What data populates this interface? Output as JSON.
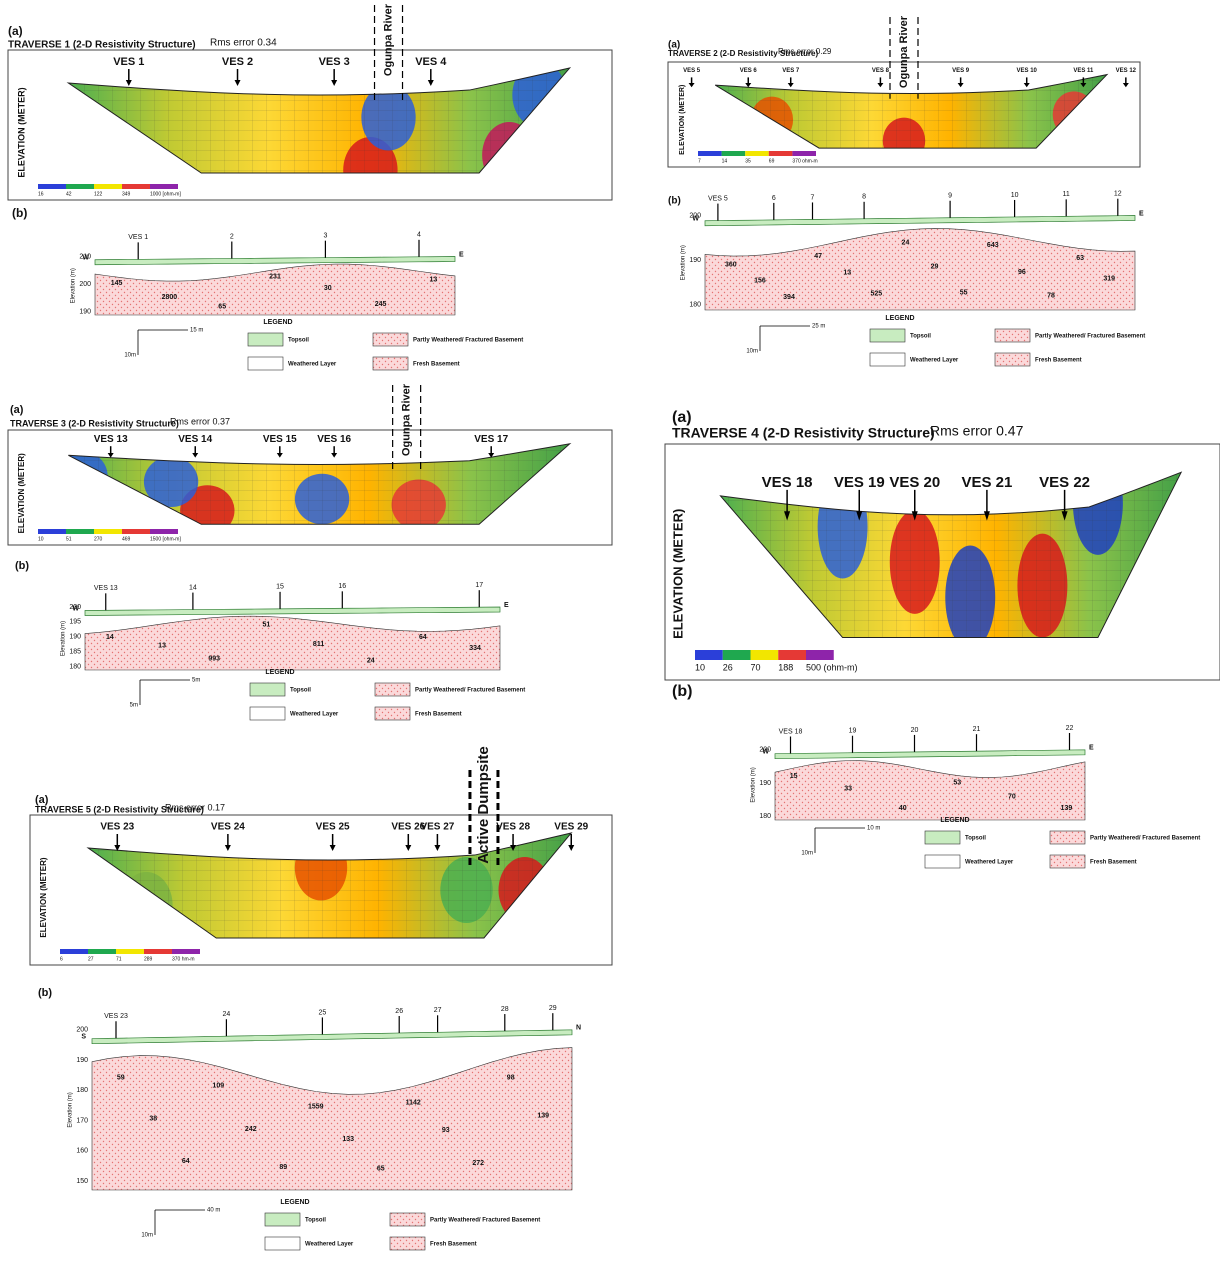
{
  "legend": {
    "title": "LEGEND",
    "topsoil": "Topsoil",
    "partly": "Partly Weathered/ Fractured Basement",
    "weathered": "Weathered Layer",
    "fresh": "Fresh Basement"
  },
  "traverses": [
    {
      "label_a": "(a)",
      "title": "TRAVERSE 1 (2-D Resistivity Structure)",
      "rms": "Rms error 0.34",
      "ves": [
        "VES 1",
        "VES 2",
        "VES 3",
        "VES 4"
      ],
      "feature": "Ogunpa River",
      "y_axis": "ELEVATION (METER)",
      "colorbar": [
        "16",
        "42",
        "122",
        "349",
        "1000 [ohm-m]"
      ],
      "label_b": "(b)",
      "section_ves": [
        "VES 1",
        "2",
        "3",
        "4"
      ],
      "section_values": [
        "145",
        "2800",
        "65",
        "231",
        "30",
        "245",
        "13"
      ],
      "elev_axis": "Elevation (m)",
      "elev_ticks": [
        "210",
        "200",
        "190"
      ],
      "scale": "15 m",
      "scale_v": "10m",
      "dirs": [
        "W",
        "E"
      ]
    },
    {
      "label_a": "(a)",
      "title": "TRAVERSE 2 (2-D Resistivity Structure)",
      "rms": "Rms error 0.29",
      "ves": [
        "VES 5",
        "VES 6",
        "VES 7",
        "VES 8",
        "VES 9",
        "VES 10",
        "VES 11",
        "VES 12"
      ],
      "feature": "Ogunpa River",
      "y_axis": "ELEVATION (METER)",
      "colorbar": [
        "7",
        "14",
        "35",
        "69",
        "370 ohm-m"
      ],
      "label_b": "(b)",
      "section_ves": [
        "VES 5",
        "6",
        "7",
        "8",
        "9",
        "10",
        "11",
        "12"
      ],
      "section_values": [
        "360",
        "156",
        "394",
        "47",
        "13",
        "525",
        "24",
        "29",
        "55",
        "643",
        "96",
        "78",
        "63",
        "319"
      ],
      "elev_axis": "Elevation (m)",
      "elev_ticks": [
        "200",
        "190",
        "180"
      ],
      "scale": "25 m",
      "scale_v": "10m",
      "dirs": [
        "W",
        "E"
      ]
    },
    {
      "label_a": "(a)",
      "title": "TRAVERSE 3 (2-D Resistivity Structure)",
      "rms": "Rms error 0.37",
      "ves": [
        "VES 13",
        "VES 14",
        "VES 15",
        "VES 16",
        "VES 17"
      ],
      "feature": "Ogunpa River",
      "y_axis": "ELEVATION (METER)",
      "colorbar": [
        "10",
        "51",
        "270",
        "469",
        "1500 [ohm-m]"
      ],
      "label_b": "(b)",
      "section_ves": [
        "VES 13",
        "14",
        "15",
        "16",
        "17"
      ],
      "section_values": [
        "14",
        "13",
        "993",
        "51",
        "811",
        "24",
        "64",
        "334"
      ],
      "elev_axis": "Elevation (m)",
      "elev_ticks": [
        "200",
        "195",
        "190",
        "185",
        "180"
      ],
      "scale": "5m",
      "scale_v": "5m",
      "dirs": [
        "W",
        "E"
      ]
    },
    {
      "label_a": "(a)",
      "title": "TRAVERSE 4 (2-D Resistivity Structure)",
      "rms": "Rms error 0.47",
      "ves": [
        "VES 18",
        "VES 19",
        "VES 20",
        "VES 21",
        "VES 22"
      ],
      "feature": null,
      "y_axis": "ELEVATION (METER)",
      "colorbar": [
        "10",
        "26",
        "70",
        "188",
        "500 (ohm-m)"
      ],
      "label_b": "(b)",
      "section_ves": [
        "VES 18",
        "19",
        "20",
        "21",
        "22"
      ],
      "section_values": [
        "15",
        "33",
        "40",
        "53",
        "70",
        "139"
      ],
      "elev_axis": "Elevation (m)",
      "elev_ticks": [
        "200",
        "190",
        "180"
      ],
      "scale": "10 m",
      "scale_v": "10m",
      "dirs": [
        "W",
        "E"
      ]
    },
    {
      "label_a": "(a)",
      "title": "TRAVERSE 5 (2-D Resistivity Structure)",
      "rms": "Rms error 0.17",
      "ves": [
        "VES 23",
        "VES 24",
        "VES 25",
        "VES 26",
        "VES 27",
        "VES 28",
        "VES 29"
      ],
      "feature": "Active Dumpsite",
      "y_axis": "ELEVATION (METER)",
      "colorbar": [
        "6",
        "27",
        "71",
        "289",
        "370 hm-m"
      ],
      "label_b": "(b)",
      "section_ves": [
        "VES 23",
        "24",
        "25",
        "26",
        "27",
        "28",
        "29"
      ],
      "section_values": [
        "59",
        "38",
        "64",
        "109",
        "242",
        "89",
        "1559",
        "133",
        "65",
        "1142",
        "93",
        "272",
        "98",
        "139"
      ],
      "elev_axis": "Elevation (m)",
      "elev_ticks": [
        "200",
        "190",
        "180",
        "170",
        "160",
        "150"
      ],
      "scale": "40 m",
      "scale_v": "10m",
      "dirs": [
        "S",
        "N"
      ]
    }
  ]
}
